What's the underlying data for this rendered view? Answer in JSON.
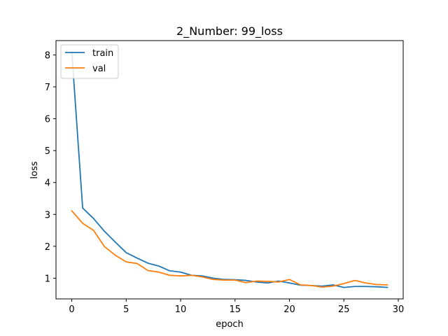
{
  "chart_data": {
    "type": "line",
    "title": "2_Number: 99_loss",
    "xlabel": "epoch",
    "ylabel": "loss",
    "xlim": [
      -1.45,
      30.45
    ],
    "ylim": [
      0.35,
      8.45
    ],
    "xticks": [
      0,
      5,
      10,
      15,
      20,
      25,
      30
    ],
    "yticks": [
      1,
      2,
      3,
      4,
      5,
      6,
      7,
      8
    ],
    "grid": false,
    "legend_position": "top-left",
    "x": [
      0,
      1,
      2,
      3,
      4,
      5,
      6,
      7,
      8,
      9,
      10,
      11,
      12,
      13,
      14,
      15,
      16,
      17,
      18,
      19,
      20,
      21,
      22,
      23,
      24,
      25,
      26,
      27,
      28,
      29
    ],
    "series": [
      {
        "name": "train",
        "color": "#1f77b4",
        "values": [
          8.1,
          3.2,
          2.87,
          2.47,
          2.13,
          1.8,
          1.63,
          1.47,
          1.38,
          1.23,
          1.19,
          1.09,
          1.07,
          1.0,
          0.96,
          0.95,
          0.93,
          0.88,
          0.85,
          0.91,
          0.85,
          0.78,
          0.77,
          0.75,
          0.79,
          0.71,
          0.74,
          0.74,
          0.73,
          0.71
        ]
      },
      {
        "name": "val",
        "color": "#ff7f0e",
        "values": [
          3.11,
          2.72,
          2.5,
          1.99,
          1.72,
          1.51,
          1.46,
          1.24,
          1.19,
          1.09,
          1.07,
          1.09,
          1.04,
          0.96,
          0.94,
          0.94,
          0.86,
          0.91,
          0.9,
          0.88,
          0.96,
          0.79,
          0.77,
          0.72,
          0.75,
          0.83,
          0.93,
          0.85,
          0.8,
          0.79
        ]
      }
    ]
  }
}
